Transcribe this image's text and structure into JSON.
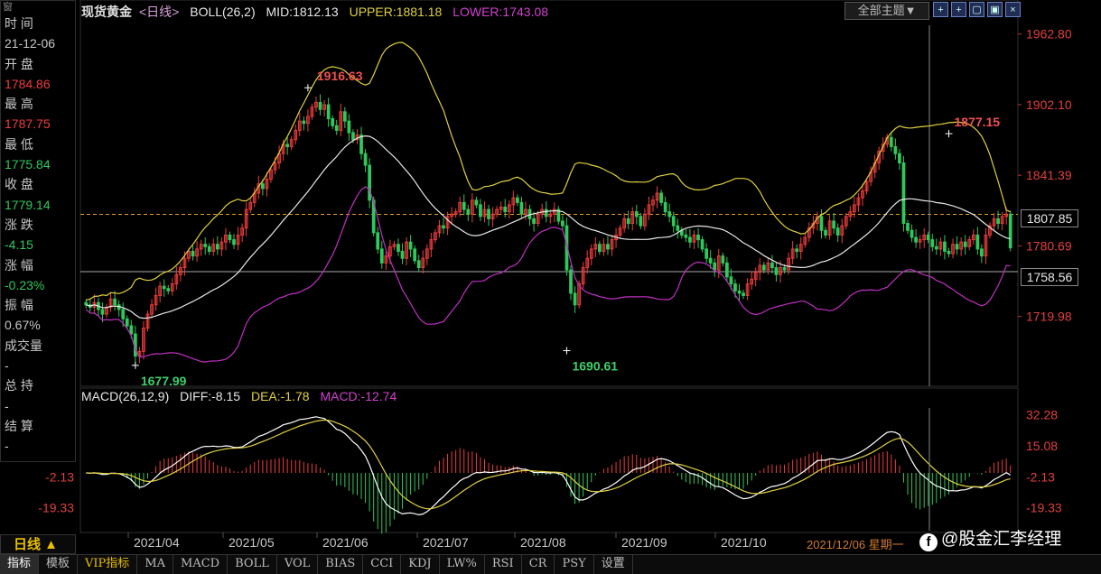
{
  "left_panel": {
    "window_label": "窗",
    "rows": [
      {
        "text": "时 间",
        "color": "w"
      },
      {
        "text": "21-12-06",
        "color": "w"
      },
      {
        "text": "开 盘",
        "color": "w"
      },
      {
        "text": "1784.86",
        "color": "r"
      },
      {
        "text": "最 高",
        "color": "w"
      },
      {
        "text": "1787.75",
        "color": "r"
      },
      {
        "text": "最 低",
        "color": "w"
      },
      {
        "text": "1775.84",
        "color": "g"
      },
      {
        "text": "收 盘",
        "color": "w"
      },
      {
        "text": "1779.14",
        "color": "g"
      },
      {
        "text": "涨 跌",
        "color": "w"
      },
      {
        "text": "-4.15",
        "color": "g"
      },
      {
        "text": "涨 幅",
        "color": "w"
      },
      {
        "text": "-0.23%",
        "color": "g"
      },
      {
        "text": "振 幅",
        "color": "w"
      },
      {
        "text": "0.67%",
        "color": "w"
      },
      {
        "text": "成交量",
        "color": "w"
      },
      {
        "text": "-",
        "color": "w"
      },
      {
        "text": "总 持",
        "color": "w"
      },
      {
        "text": "-",
        "color": "w"
      },
      {
        "text": "结 算",
        "color": "w"
      },
      {
        "text": "-",
        "color": "w"
      }
    ]
  },
  "header": {
    "title": "现货黄金",
    "period": "<日线>",
    "boll": "BOLL(26,2)",
    "mid": "MID:1812.13",
    "upper": "UPPER:1881.18",
    "lower": "LOWER:1743.08",
    "topic_button": "全部主题▼",
    "tool_icons": [
      "+",
      "+",
      "▢",
      "▣",
      "×"
    ]
  },
  "macd_header": {
    "name": "MACD(26,12,9)",
    "diff": "DIFF:-8.15",
    "dea": "DEA:-1.78",
    "macd": "MACD:-12.74"
  },
  "price_boxes": {
    "current": "1807.85",
    "line": "1758.56"
  },
  "period_button": "日线 ▲",
  "tabs": [
    "指标",
    "模板",
    "VIP指标",
    "MA",
    "MACD",
    "BOLL",
    "VOL",
    "BIAS",
    "CCI",
    "KDJ",
    "LW%",
    "RSI",
    "CR",
    "PSY",
    "设置"
  ],
  "date_readout": "2021/12/06 星期一",
  "watermark": "@股金汇李经理",
  "colors": {
    "up": "#f03c3c",
    "down": "#2ec95c",
    "mid": "#e8e8e8",
    "upper": "#e0d040",
    "lower": "#c030c0",
    "dea": "#e0d040",
    "diff": "#ffffff",
    "macd_pos": "#f03c3c",
    "macd_neg": "#2ec95c"
  },
  "chart_data": {
    "type": "candlestick",
    "price_axis": {
      "ticks": [
        1962.8,
        1902.1,
        1841.39,
        1780.69,
        1719.98
      ],
      "ylim": [
        1660,
        1975
      ]
    },
    "x_labels": [
      "2021/04",
      "2021/05",
      "2021/06",
      "2021/07",
      "2021/08",
      "2021/09",
      "2021/10"
    ],
    "annotations": [
      {
        "text": "1916.63",
        "value": 1916.63,
        "color": "r"
      },
      {
        "text": "1677.99",
        "value": 1677.99,
        "color": "g"
      },
      {
        "text": "1690.61",
        "value": 1690.61,
        "color": "g"
      },
      {
        "text": "1877.15",
        "value": 1877.15,
        "color": "r"
      }
    ],
    "reference_lines": {
      "dashed": 1807.85,
      "solid": 1758.56
    },
    "close": [
      1730,
      1728,
      1732,
      1726,
      1722,
      1728,
      1735,
      1730,
      1726,
      1718,
      1712,
      1705,
      1686,
      1690,
      1710,
      1722,
      1730,
      1738,
      1746,
      1744,
      1742,
      1748,
      1756,
      1762,
      1770,
      1776,
      1772,
      1778,
      1782,
      1780,
      1776,
      1782,
      1778,
      1784,
      1790,
      1786,
      1782,
      1790,
      1796,
      1812,
      1818,
      1826,
      1834,
      1830,
      1838,
      1846,
      1852,
      1860,
      1868,
      1866,
      1872,
      1880,
      1888,
      1886,
      1892,
      1900,
      1904,
      1898,
      1902,
      1890,
      1884,
      1880,
      1896,
      1888,
      1878,
      1872,
      1876,
      1860,
      1850,
      1820,
      1792,
      1778,
      1766,
      1772,
      1780,
      1782,
      1776,
      1770,
      1784,
      1778,
      1768,
      1762,
      1770,
      1778,
      1786,
      1792,
      1798,
      1796,
      1806,
      1808,
      1810,
      1818,
      1812,
      1808,
      1820,
      1816,
      1806,
      1812,
      1804,
      1808,
      1812,
      1814,
      1810,
      1816,
      1822,
      1818,
      1808,
      1812,
      1804,
      1800,
      1808,
      1812,
      1806,
      1808,
      1812,
      1802,
      1798,
      1760,
      1740,
      1730,
      1748,
      1762,
      1770,
      1778,
      1782,
      1776,
      1782,
      1778,
      1786,
      1790,
      1796,
      1804,
      1800,
      1810,
      1806,
      1798,
      1808,
      1816,
      1820,
      1826,
      1818,
      1810,
      1806,
      1798,
      1794,
      1790,
      1788,
      1784,
      1790,
      1786,
      1778,
      1770,
      1766,
      1760,
      1772,
      1766,
      1754,
      1748,
      1742,
      1740,
      1738,
      1748,
      1752,
      1758,
      1764,
      1760,
      1766,
      1762,
      1756,
      1762,
      1760,
      1770,
      1778,
      1776,
      1782,
      1788,
      1796,
      1800,
      1806,
      1794,
      1790,
      1802,
      1796,
      1790,
      1798,
      1806,
      1810,
      1816,
      1822,
      1828,
      1836,
      1844,
      1852,
      1862,
      1868,
      1874,
      1866,
      1860,
      1852,
      1800,
      1794,
      1788,
      1784,
      1786,
      1790,
      1786,
      1780,
      1778,
      1784,
      1776,
      1774,
      1782,
      1778,
      1784,
      1780,
      1786,
      1790,
      1778,
      1772,
      1790,
      1798,
      1804,
      1800,
      1806,
      1808,
      1779
    ],
    "macd": {
      "ticks": [
        32.28,
        15.08,
        -2.13,
        -19.33
      ],
      "diff_last": -8.15,
      "dea_last": -1.78,
      "hist_last": -12.74
    }
  }
}
